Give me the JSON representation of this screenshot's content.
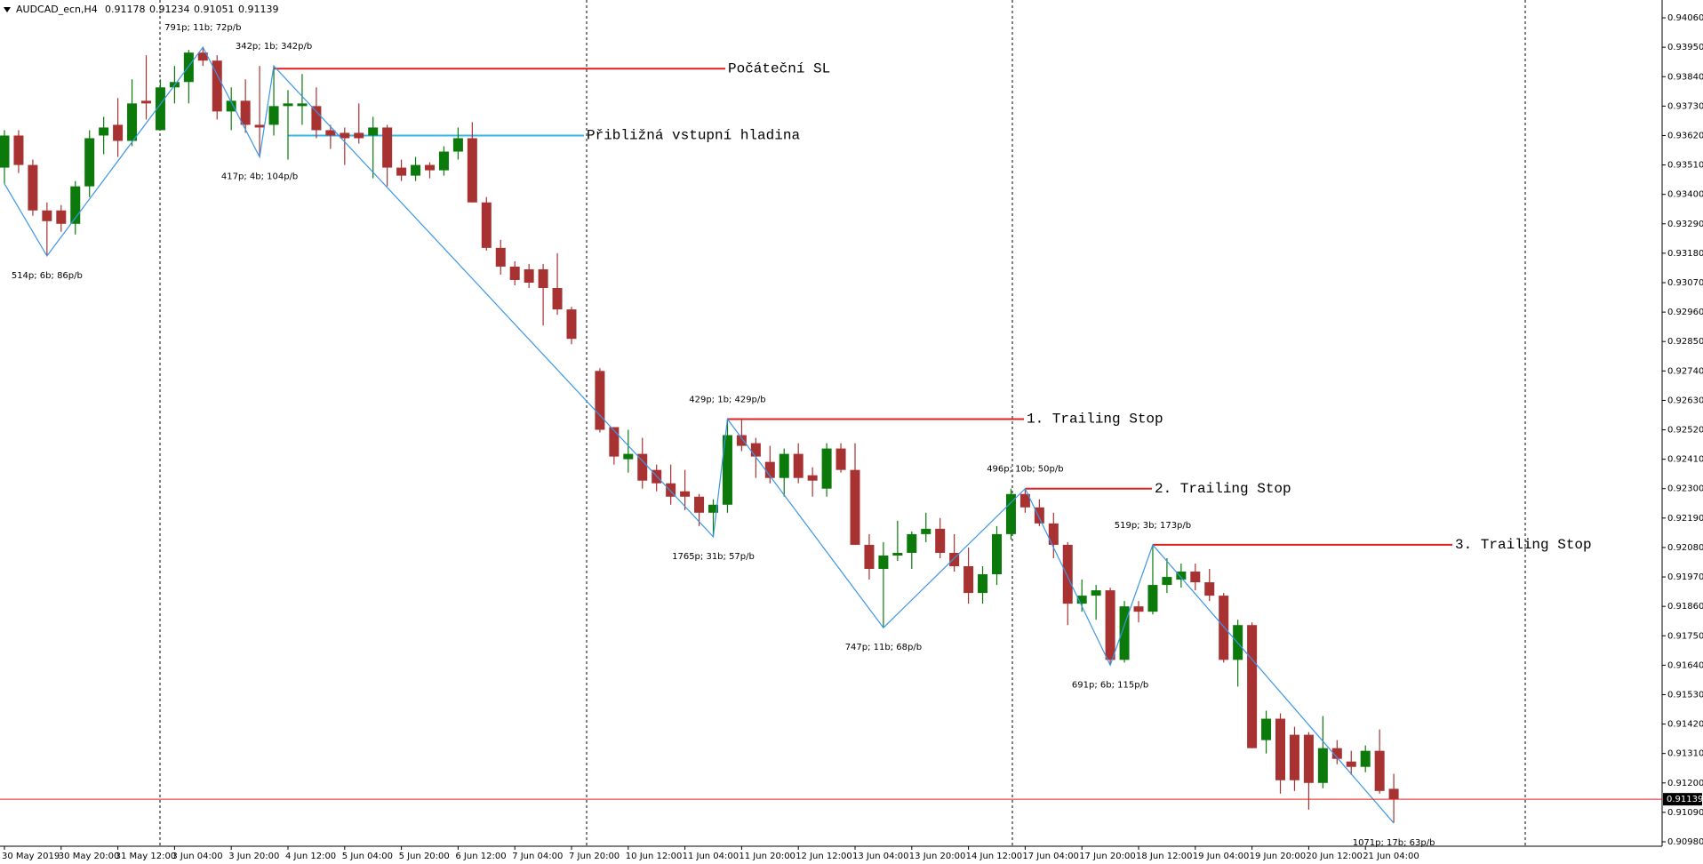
{
  "chart_data": {
    "type": "candlestick",
    "title": "AUDCAD_ecn,H4",
    "header_ohlc": [
      0.91178,
      0.91234,
      0.91051,
      0.91139
    ],
    "categories": [
      "30 May 2019",
      null,
      null,
      null,
      "30 May 20:00",
      null,
      null,
      null,
      "31 May 12:00",
      null,
      null,
      null,
      "3 Jun 04:00",
      null,
      null,
      null,
      "3 Jun 20:00",
      null,
      null,
      null,
      "4 Jun 12:00",
      null,
      null,
      null,
      "5 Jun 04:00",
      null,
      null,
      null,
      "5 Jun 20:00",
      null,
      null,
      null,
      "6 Jun 12:00",
      null,
      null,
      null,
      "7 Jun 04:00",
      null,
      null,
      null,
      "7 Jun 20:00",
      null,
      null,
      null,
      "10 Jun 12:00",
      null,
      null,
      null,
      "11 Jun 04:00",
      null,
      null,
      null,
      "11 Jun 20:00",
      null,
      null,
      null,
      "12 Jun 12:00",
      null,
      null,
      null,
      "13 Jun 04:00",
      null,
      null,
      null,
      "13 Jun 20:00",
      null,
      null,
      null,
      "14 Jun 12:00",
      null,
      null,
      null,
      "17 Jun 04:00",
      null,
      null,
      null,
      "17 Jun 20:00",
      null,
      null,
      null,
      "18 Jun 12:00",
      null,
      null,
      null,
      "19 Jun 04:00",
      null,
      null,
      null,
      "19 Jun 20:00",
      null,
      null,
      null,
      "20 Jun 12:00",
      null,
      null,
      null,
      "21 Jun 04:00",
      null,
      null
    ],
    "open": [
      0.935,
      0.9362,
      0.9351,
      0.9334,
      0.9334,
      0.9329,
      0.9343,
      0.9362,
      0.9366,
      0.936,
      0.9375,
      0.9364,
      0.938,
      0.9382,
      0.9393,
      0.939,
      0.9371,
      0.9375,
      0.9366,
      0.9366,
      0.9373,
      0.9373,
      0.9373,
      0.9364,
      0.9363,
      0.9363,
      0.9362,
      0.9365,
      0.935,
      0.9347,
      0.9351,
      0.9349,
      0.9356,
      0.9361,
      0.9337,
      0.932,
      0.9313,
      0.9312,
      0.9312,
      0.9305,
      0.9297,
      null,
      0.9274,
      0.9253,
      0.9241,
      0.9243,
      0.9237,
      0.9232,
      0.9229,
      0.9227,
      0.9221,
      0.9224,
      0.925,
      0.9247,
      0.924,
      0.9234,
      0.9243,
      0.9235,
      0.923,
      0.9245,
      0.9237,
      0.9209,
      0.92,
      0.9205,
      0.9206,
      0.9213,
      0.9215,
      0.9206,
      0.9201,
      0.9191,
      0.9198,
      0.9213,
      0.9228,
      0.9223,
      0.9217,
      0.9209,
      0.9187,
      0.919,
      0.9192,
      0.9166,
      0.9186,
      0.9184,
      0.9194,
      0.9196,
      0.9199,
      0.9195,
      0.919,
      0.9166,
      0.9179,
      0.9136,
      0.9144,
      0.9138,
      0.9138,
      0.912,
      0.9133,
      0.9128,
      0.9126,
      0.9132,
      0.91178
    ],
    "high": [
      0.9364,
      0.9364,
      0.9353,
      0.9337,
      0.9336,
      0.9345,
      0.9364,
      0.9369,
      0.9376,
      0.9383,
      0.9392,
      0.9383,
      0.9388,
      0.9394,
      0.9395,
      0.9392,
      0.938,
      0.9383,
      0.9388,
      0.9388,
      0.9379,
      0.9385,
      0.938,
      0.9366,
      0.9365,
      0.9374,
      0.9369,
      0.9366,
      0.9353,
      0.9354,
      0.9352,
      0.9358,
      0.9365,
      0.9367,
      0.9339,
      0.9323,
      0.9315,
      0.9314,
      0.9314,
      0.9318,
      0.9298,
      null,
      0.9275,
      0.9253,
      0.9252,
      0.9249,
      0.9239,
      0.9239,
      0.9237,
      0.9228,
      0.9226,
      0.9256,
      0.9256,
      0.9249,
      0.9246,
      0.9245,
      0.9247,
      0.9238,
      0.9247,
      0.9247,
      0.9247,
      0.9213,
      0.921,
      0.9218,
      0.9214,
      0.9221,
      0.9219,
      0.9213,
      0.9208,
      0.9201,
      0.9216,
      0.923,
      0.923,
      0.9226,
      0.9221,
      0.921,
      0.9196,
      0.9194,
      0.9193,
      0.9188,
      0.9188,
      0.9209,
      0.9204,
      0.9202,
      0.9202,
      0.92,
      0.9191,
      0.9181,
      0.918,
      0.9147,
      0.9146,
      0.9141,
      0.9139,
      0.9145,
      0.9136,
      0.9132,
      0.9134,
      0.914,
      0.91234
    ],
    "low": [
      0.9344,
      0.9348,
      0.9332,
      0.9317,
      0.9326,
      0.9325,
      0.9339,
      0.9355,
      0.9354,
      0.9358,
      0.9368,
      0.9364,
      0.9374,
      0.9374,
      0.9388,
      0.9368,
      0.9364,
      0.9363,
      0.9354,
      0.9362,
      0.9353,
      0.9366,
      0.9361,
      0.9357,
      0.9351,
      0.9359,
      0.9346,
      0.9343,
      0.9345,
      0.9345,
      0.9346,
      0.9347,
      0.9353,
      0.9337,
      0.9319,
      0.931,
      0.9306,
      0.9305,
      0.9291,
      0.9295,
      0.9284,
      null,
      0.9251,
      0.9239,
      0.9236,
      0.923,
      0.9229,
      0.9224,
      0.9222,
      0.9216,
      0.9212,
      0.9221,
      0.9244,
      0.9234,
      0.9232,
      0.9227,
      0.9232,
      0.9227,
      0.9227,
      0.9236,
      0.9209,
      0.9196,
      0.9178,
      0.9203,
      0.92,
      0.921,
      0.9204,
      0.9199,
      0.9187,
      0.9187,
      0.9194,
      0.9211,
      0.9221,
      0.9216,
      0.9204,
      0.9179,
      0.9184,
      0.9181,
      0.9164,
      0.9165,
      0.918,
      0.9183,
      0.9191,
      0.9193,
      0.9192,
      0.9188,
      0.9165,
      0.9156,
      0.9133,
      0.9131,
      0.9116,
      0.9117,
      0.911,
      0.9118,
      0.9127,
      0.9123,
      0.9124,
      0.9116,
      0.91051
    ],
    "close": [
      0.9362,
      0.9351,
      0.9334,
      0.933,
      0.9329,
      0.9343,
      0.9361,
      0.9365,
      0.936,
      0.9374,
      0.9374,
      0.938,
      0.9382,
      0.9393,
      0.939,
      0.9371,
      0.9375,
      0.9366,
      0.9365,
      0.9373,
      0.9374,
      0.9374,
      0.9364,
      0.9362,
      0.9361,
      0.9361,
      0.9365,
      0.935,
      0.9347,
      0.9351,
      0.9349,
      0.9356,
      0.9361,
      0.9337,
      0.932,
      0.9313,
      0.9308,
      0.9307,
      0.9305,
      0.9297,
      0.9286,
      null,
      0.9252,
      0.9242,
      0.9243,
      0.9233,
      0.9232,
      0.9227,
      0.9227,
      0.9221,
      0.9224,
      0.925,
      0.9246,
      0.9242,
      0.9234,
      0.9243,
      0.9234,
      0.9233,
      0.9245,
      0.9237,
      0.9209,
      0.92,
      0.9205,
      0.9206,
      0.9213,
      0.9215,
      0.9206,
      0.9201,
      0.9191,
      0.9198,
      0.9213,
      0.9228,
      0.9223,
      0.9217,
      0.9209,
      0.9187,
      0.919,
      0.9192,
      0.9166,
      0.9186,
      0.9184,
      0.9194,
      0.9197,
      0.9199,
      0.9195,
      0.919,
      0.9166,
      0.9179,
      0.9133,
      0.9144,
      0.9121,
      0.9121,
      0.912,
      0.9133,
      0.9129,
      0.9126,
      0.9132,
      0.9117,
      0.91139
    ],
    "up_color": "#0b7a0b",
    "down_color": "#a83232",
    "ylim": [
      0.9097,
      0.9411
    ],
    "yticks": [
      {
        "value": 0.9406,
        "label": "0.94060"
      },
      {
        "value": 0.9395,
        "label": "0.93950"
      },
      {
        "value": 0.9384,
        "label": "0.93840"
      },
      {
        "value": 0.9373,
        "label": "0.93730"
      },
      {
        "value": 0.9362,
        "label": "0.93620"
      },
      {
        "value": 0.9351,
        "label": "0.93510"
      },
      {
        "value": 0.934,
        "label": "0.93400"
      },
      {
        "value": 0.9329,
        "label": "0.93290"
      },
      {
        "value": 0.9318,
        "label": "0.93180"
      },
      {
        "value": 0.9307,
        "label": "0.93070"
      },
      {
        "value": 0.9296,
        "label": "0.92960"
      },
      {
        "value": 0.9285,
        "label": "0.92850"
      },
      {
        "value": 0.9274,
        "label": "0.92740"
      },
      {
        "value": 0.9263,
        "label": "0.92630"
      },
      {
        "value": 0.9252,
        "label": "0.92520"
      },
      {
        "value": 0.9241,
        "label": "0.92410"
      },
      {
        "value": 0.923,
        "label": "0.92300"
      },
      {
        "value": 0.9219,
        "label": "0.92190"
      },
      {
        "value": 0.9208,
        "label": "0.92080"
      },
      {
        "value": 0.9197,
        "label": "0.91970"
      },
      {
        "value": 0.9186,
        "label": "0.91860"
      },
      {
        "value": 0.9175,
        "label": "0.91750"
      },
      {
        "value": 0.9164,
        "label": "0.91640"
      },
      {
        "value": 0.9153,
        "label": "0.91530"
      },
      {
        "value": 0.9142,
        "label": "0.91420"
      },
      {
        "value": 0.9131,
        "label": "0.91310"
      },
      {
        "value": 0.912,
        "label": "0.91200"
      },
      {
        "value": 0.9109,
        "label": "0.91090"
      },
      {
        "value": 0.9098,
        "label": "0.90980"
      }
    ],
    "zigzag": {
      "color": "#3a96e8",
      "up_label_color": "#1f8f1f",
      "down_label_color": "#e02020",
      "x": [
        0,
        3,
        14,
        18,
        19,
        50,
        51,
        62,
        72,
        78,
        81,
        98
      ],
      "values": [
        0.9344,
        0.9317,
        0.9395,
        0.9354,
        0.9388,
        0.9212,
        0.9256,
        0.9178,
        0.923,
        0.9164,
        0.9209,
        0.9105
      ],
      "labels": [
        null,
        "514p; 6b; 86p/b",
        "791p; 11b; 72p/b",
        "417p; 4b; 104p/b",
        "342p; 1b; 342p/b",
        "1765p; 31b; 57p/b",
        "429p; 1b; 429p/b",
        "747p; 11b; 68p/b",
        "496p; 10b; 50p/b",
        "691p; 6b; 115p/b",
        "519p; 3b; 173p/b",
        "1071p; 17b; 63p/b"
      ]
    },
    "levels": [
      {
        "label": "Počáteční SL",
        "value": 0.9387,
        "start": 19,
        "color": "#e02020"
      },
      {
        "label": "Přibližná vstupní hladina",
        "value": 0.9362,
        "start": 20,
        "color": "#33b5e5"
      },
      {
        "label": "1. Trailing Stop",
        "value": 0.9256,
        "start": 51,
        "color": "#e02020"
      },
      {
        "label": "2. Trailing Stop",
        "value": 0.923,
        "start": 72,
        "color": "#e02020"
      },
      {
        "label": "3. Trailing Stop",
        "value": 0.9209,
        "start": 81,
        "color": "#e02020"
      }
    ],
    "last_price": 0.91139,
    "last_price_color": "#e02020"
  }
}
